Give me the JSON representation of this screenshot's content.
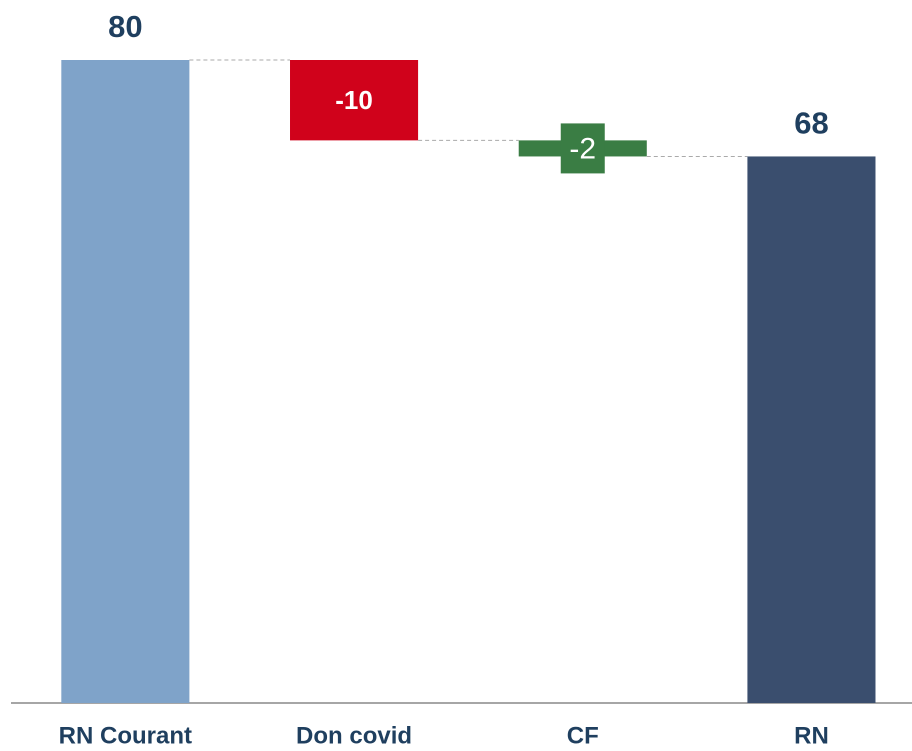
{
  "chart_data": {
    "type": "waterfall",
    "categories": [
      "RN Courant",
      "Don covid",
      "CF",
      "RN"
    ],
    "values": [
      80,
      -10,
      -2,
      68
    ],
    "colors": [
      "#7fa3c9",
      "#d0021b",
      "#3a7d44",
      "#3a4e6e"
    ]
  }
}
